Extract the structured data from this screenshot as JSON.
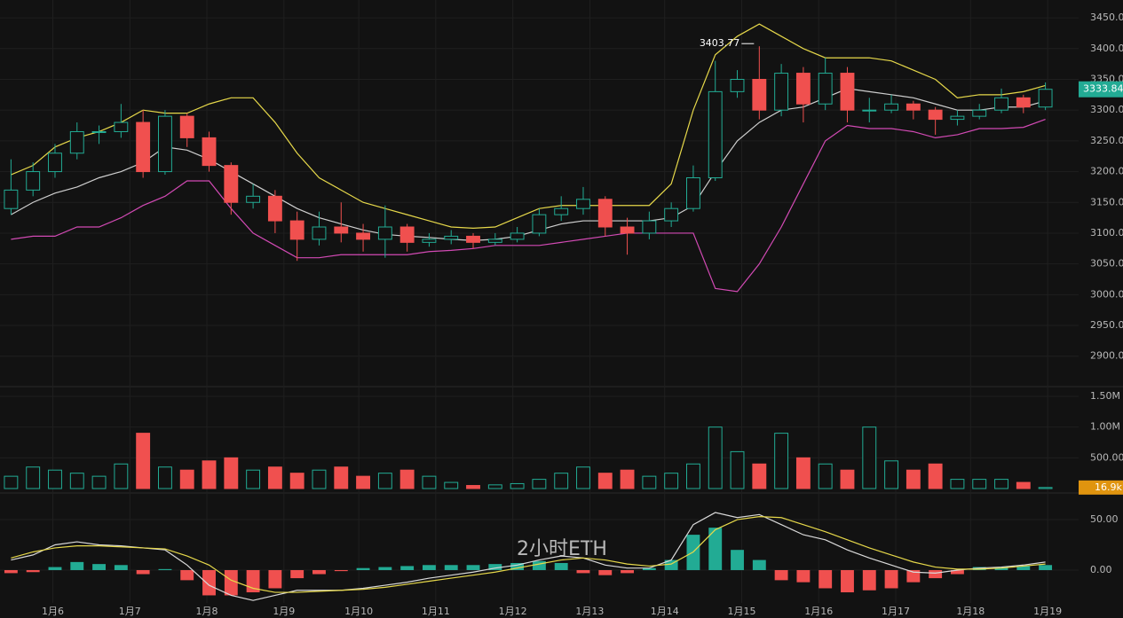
{
  "chart_data": {
    "type": "candlestick",
    "annotation": "2小时ETH",
    "annotation_color": "#f0504f",
    "up_color": "#22ab94",
    "down_color": "#f0504f",
    "background": "#121212",
    "grid": true,
    "xlim": [
      -0.5,
      47.5
    ],
    "xticks": [
      {
        "value": 1.9,
        "label": "1月6"
      },
      {
        "value": 5.4,
        "label": "1月7"
      },
      {
        "value": 8.9,
        "label": "1月8"
      },
      {
        "value": 12.4,
        "label": "1月9"
      },
      {
        "value": 15.8,
        "label": "1月10"
      },
      {
        "value": 19.3,
        "label": "1月11"
      },
      {
        "value": 22.8,
        "label": "1月12"
      },
      {
        "value": 26.3,
        "label": "1月13"
      },
      {
        "value": 29.7,
        "label": "1月14"
      },
      {
        "value": 33.2,
        "label": "1月15"
      },
      {
        "value": 36.7,
        "label": "1月16"
      },
      {
        "value": 40.2,
        "label": "1月17"
      },
      {
        "value": 43.6,
        "label": "1月18"
      },
      {
        "value": 47.1,
        "label": "1月19"
      }
    ],
    "ylim": [
      2852,
      3479
    ],
    "yticks": [
      {
        "value": 2900,
        "label": "2900.00"
      },
      {
        "value": 2950,
        "label": "2950.00"
      },
      {
        "value": 3000,
        "label": "3000.00"
      },
      {
        "value": 3050,
        "label": "3050.00"
      },
      {
        "value": 3100,
        "label": "3100.00"
      },
      {
        "value": 3150,
        "label": "3150.00"
      },
      {
        "value": 3200,
        "label": "3200.00"
      },
      {
        "value": 3250,
        "label": "3250.00"
      },
      {
        "value": 3300,
        "label": "3300.00"
      },
      {
        "value": 3350,
        "label": "3350.00"
      },
      {
        "value": 3400,
        "label": "3400.00"
      },
      {
        "value": 3450,
        "label": "3450.00"
      }
    ],
    "open": [
      3140,
      3170,
      3200,
      3230,
      3265,
      3265,
      3280,
      3200,
      3290,
      3255,
      3210,
      3150,
      3160,
      3120,
      3090,
      3110,
      3100,
      3090,
      3110,
      3085,
      3090,
      3095,
      3085,
      3090,
      3100,
      3130,
      3140,
      3155,
      3110,
      3100,
      3120,
      3140,
      3190,
      3330,
      3350,
      3300,
      3360,
      3310,
      3360,
      3300,
      3300,
      3310,
      3300,
      3285,
      3290,
      3300,
      3320,
      3305
    ],
    "high": [
      3220,
      3215,
      3245,
      3280,
      3275,
      3310,
      3300,
      3300,
      3295,
      3265,
      3215,
      3180,
      3170,
      3135,
      3135,
      3150,
      3115,
      3145,
      3115,
      3100,
      3105,
      3100,
      3100,
      3110,
      3140,
      3160,
      3175,
      3160,
      3125,
      3135,
      3150,
      3210,
      3380,
      3365,
      3403.77,
      3375,
      3370,
      3385,
      3370,
      3320,
      3325,
      3315,
      3305,
      3300,
      3310,
      3335,
      3325,
      3345
    ],
    "low": [
      3130,
      3160,
      3190,
      3220,
      3245,
      3255,
      3190,
      3195,
      3240,
      3200,
      3130,
      3140,
      3100,
      3055,
      3080,
      3085,
      3070,
      3060,
      3070,
      3078,
      3082,
      3075,
      3080,
      3085,
      3095,
      3120,
      3130,
      3095,
      3065,
      3090,
      3110,
      3135,
      3185,
      3320,
      3285,
      3290,
      3280,
      3300,
      3280,
      3280,
      3295,
      3285,
      3260,
      3275,
      3285,
      3295,
      3295,
      3300
    ],
    "close": [
      3170,
      3200,
      3230,
      3265,
      3265,
      3280,
      3200,
      3290,
      3255,
      3210,
      3150,
      3160,
      3120,
      3090,
      3110,
      3100,
      3090,
      3110,
      3085,
      3090,
      3095,
      3085,
      3090,
      3100,
      3130,
      3140,
      3155,
      3110,
      3100,
      3120,
      3140,
      3190,
      3330,
      3350,
      3300,
      3360,
      3310,
      3360,
      3300,
      3300,
      3310,
      3300,
      3285,
      3290,
      3300,
      3320,
      3305,
      3333.84
    ],
    "bands": [
      {
        "color": "#e6d84a",
        "values": [
          3195,
          3210,
          3240,
          3255,
          3265,
          3280,
          3300,
          3295,
          3295,
          3310,
          3320,
          3320,
          3280,
          3230,
          3190,
          3170,
          3150,
          3140,
          3130,
          3120,
          3110,
          3108,
          3110,
          3125,
          3140,
          3145,
          3145,
          3145,
          3145,
          3145,
          3180,
          3300,
          3390,
          3420,
          3440,
          3420,
          3400,
          3385,
          3385,
          3385,
          3380,
          3365,
          3350,
          3320,
          3325,
          3325,
          3330,
          3340
        ]
      },
      {
        "color": "#cfcfcf",
        "values": [
          3130,
          3150,
          3165,
          3175,
          3190,
          3200,
          3215,
          3240,
          3235,
          3220,
          3200,
          3180,
          3160,
          3140,
          3125,
          3115,
          3105,
          3098,
          3095,
          3093,
          3090,
          3088,
          3090,
          3095,
          3105,
          3115,
          3120,
          3120,
          3120,
          3120,
          3125,
          3145,
          3200,
          3250,
          3280,
          3300,
          3305,
          3320,
          3335,
          3330,
          3325,
          3320,
          3310,
          3300,
          3300,
          3305,
          3305,
          3315
        ]
      },
      {
        "color": "#d24ab4",
        "values": [
          3090,
          3095,
          3095,
          3110,
          3110,
          3125,
          3145,
          3160,
          3185,
          3185,
          3140,
          3100,
          3080,
          3060,
          3060,
          3065,
          3065,
          3065,
          3065,
          3070,
          3072,
          3075,
          3080,
          3080,
          3080,
          3085,
          3090,
          3095,
          3100,
          3100,
          3100,
          3100,
          3010,
          3005,
          3050,
          3110,
          3180,
          3250,
          3275,
          3270,
          3270,
          3265,
          3255,
          3260,
          3270,
          3270,
          3272,
          3285
        ]
      }
    ],
    "volume": {
      "ylim": [
        0,
        1630000
      ],
      "yticks": [
        {
          "value": 500000,
          "label": "500.00K"
        },
        {
          "value": 1000000,
          "label": "1.00M"
        },
        {
          "value": 1500000,
          "label": "1.50M"
        }
      ],
      "label_color": "#e0940f",
      "values": [
        200000,
        350000,
        300000,
        250000,
        200000,
        400000,
        900000,
        350000,
        300000,
        450000,
        500000,
        300000,
        350000,
        250000,
        300000,
        350000,
        200000,
        250000,
        300000,
        200000,
        100000,
        50000,
        60000,
        80000,
        150000,
        250000,
        350000,
        250000,
        300000,
        200000,
        250000,
        400000,
        1000000,
        600000,
        400000,
        900000,
        500000,
        400000,
        300000,
        1000000,
        450000,
        300000,
        400000,
        150000,
        150000,
        150000,
        100000,
        16900
      ],
      "value_labels": [
        null,
        null,
        null,
        null,
        null,
        null,
        null,
        null,
        null,
        null,
        null,
        null,
        null,
        null,
        null,
        null,
        null,
        null,
        null,
        null,
        null,
        null,
        null,
        null,
        null,
        null,
        null,
        null,
        null,
        null,
        null,
        null,
        null,
        null,
        null,
        null,
        null,
        null,
        null,
        null,
        null,
        null,
        null,
        null,
        null,
        null,
        null,
        "16.9k"
      ]
    },
    "macd": {
      "ylim": [
        -32.5,
        74.6
      ],
      "yticks": [
        {
          "value": 0,
          "label": "0.00"
        },
        {
          "value": 50,
          "label": "50.00"
        }
      ],
      "histogram": [
        -3,
        -2,
        3,
        8,
        6,
        5,
        -4,
        1,
        -10,
        -25,
        -25,
        -22,
        -18,
        -8,
        -4,
        -1,
        2,
        3,
        4,
        5,
        5,
        5,
        6,
        7,
        9,
        7,
        -3,
        -5,
        -3,
        2,
        10,
        35,
        42,
        20,
        10,
        -10,
        -12,
        -18,
        -22,
        -20,
        -18,
        -12,
        -8,
        -4,
        3,
        3,
        4,
        5
      ],
      "lines": [
        {
          "color": "#d9d9d9",
          "values": [
            10,
            15,
            25,
            28,
            25,
            24,
            22,
            20,
            5,
            -15,
            -25,
            -30,
            -25,
            -20,
            -20,
            -20,
            -18,
            -15,
            -12,
            -8,
            -5,
            -2,
            2,
            5,
            10,
            14,
            12,
            5,
            2,
            2,
            10,
            45,
            57,
            52,
            55,
            45,
            35,
            30,
            20,
            12,
            5,
            -2,
            -3,
            0,
            2,
            3,
            5,
            8
          ]
        },
        {
          "color": "#e6d84a",
          "values": [
            12,
            18,
            22,
            24,
            24,
            23,
            22,
            21,
            14,
            5,
            -10,
            -18,
            -22,
            -22,
            -21,
            -20,
            -19,
            -17,
            -14,
            -11,
            -8,
            -5,
            -2,
            2,
            6,
            10,
            12,
            10,
            6,
            4,
            6,
            18,
            40,
            50,
            53,
            52,
            45,
            38,
            30,
            22,
            15,
            8,
            3,
            1,
            1,
            2,
            4,
            6
          ]
        }
      ]
    }
  }
}
